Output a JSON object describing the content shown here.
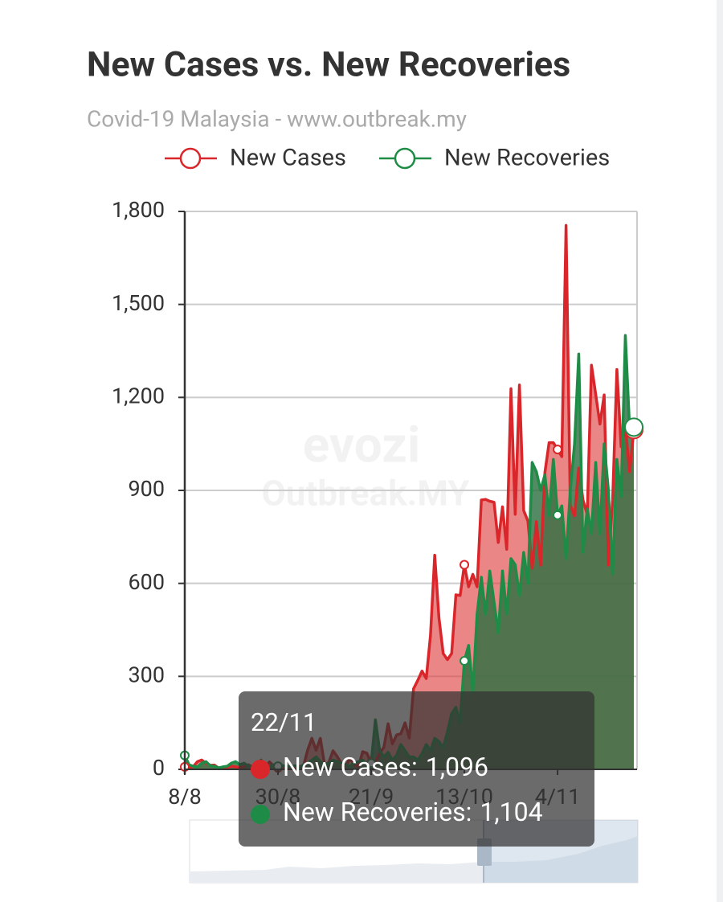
{
  "chart_data": {
    "type": "area",
    "title": "New Cases vs. New Recoveries",
    "subtitle": "Covid-19 Malaysia - www.outbreak.my",
    "watermark": [
      "evozi",
      "Outbreak.MY"
    ],
    "categories": [
      "8/8",
      null,
      null,
      null,
      null,
      null,
      null,
      null,
      null,
      null,
      null,
      null,
      null,
      null,
      null,
      null,
      null,
      null,
      null,
      null,
      null,
      null,
      "30/8",
      null,
      null,
      null,
      null,
      null,
      null,
      null,
      null,
      null,
      null,
      null,
      null,
      null,
      null,
      null,
      null,
      null,
      null,
      null,
      null,
      null,
      "21/9",
      null,
      null,
      null,
      null,
      null,
      null,
      null,
      null,
      null,
      null,
      null,
      null,
      null,
      null,
      null,
      null,
      null,
      null,
      null,
      null,
      null,
      "13/10",
      null,
      null,
      null,
      null,
      null,
      null,
      null,
      null,
      null,
      null,
      null,
      null,
      null,
      null,
      null,
      null,
      null,
      null,
      null,
      null,
      null,
      "4/11",
      null,
      null,
      null,
      null,
      null,
      null,
      null,
      null,
      null,
      null,
      null,
      null,
      null,
      null,
      null,
      null,
      null,
      null
    ],
    "series": [
      {
        "name": "New Cases",
        "color": "#d9262a",
        "area_color": "rgba(222,60,60,0.62)",
        "values": [
          8,
          6,
          9,
          25,
          30,
          20,
          13,
          14,
          4,
          3,
          5,
          10,
          8,
          6,
          9,
          15,
          7,
          10,
          12,
          6,
          24,
          11,
          5,
          9,
          6,
          5,
          6,
          10,
          9,
          62,
          100,
          62,
          100,
          15,
          22,
          60,
          41,
          18,
          11,
          36,
          15,
          9,
          57,
          52,
          21,
          23,
          52,
          71,
          147,
          82,
          111,
          115,
          150,
          101,
          260,
          287,
          317,
          293,
          432,
          691,
          489,
          374,
          354,
          374,
          563,
          561,
          660,
          589,
          629,
          589,
          869,
          871,
          865,
          862,
          732,
          847,
          710,
          1228,
          823,
          1240,
          835,
          801,
          649,
          799,
          659,
          957,
          1054,
          1054,
          1032,
          1009,
          1755,
          852,
          818,
          972,
          869,
          822,
          1304,
          1210,
          1114,
          1208,
          659,
          869,
          1290,
          1041,
          1109,
          960,
          1096
        ]
      },
      {
        "name": "New Recoveries",
        "color": "#1e8c46",
        "area_color": "rgba(46,112,66,0.82)",
        "values": [
          45,
          15,
          10,
          8,
          20,
          25,
          12,
          10,
          5,
          8,
          10,
          20,
          25,
          15,
          20,
          10,
          8,
          12,
          30,
          10,
          8,
          15,
          10,
          12,
          10,
          8,
          12,
          5,
          15,
          20,
          30,
          40,
          25,
          15,
          20,
          30,
          25,
          20,
          15,
          10,
          20,
          25,
          30,
          15,
          20,
          160,
          60,
          40,
          55,
          30,
          45,
          80,
          60,
          40,
          40,
          30,
          50,
          80,
          60,
          100,
          90,
          70,
          120,
          180,
          200,
          150,
          350,
          400,
          250,
          500,
          620,
          500,
          640,
          540,
          440,
          640,
          500,
          680,
          660,
          560,
          700,
          600,
          990,
          960,
          900,
          950,
          820,
          1000,
          820,
          850,
          680,
          900,
          1050,
          1340,
          700,
          840,
          760,
          990,
          760,
          1050,
          900,
          630,
          1000,
          880,
          1400,
          1100,
          1104
        ]
      }
    ],
    "ylim": [
      0,
      1800
    ],
    "yticks": [
      0,
      300,
      600,
      900,
      {
        "value": 1200,
        "label": "1,200"
      },
      {
        "value": 1500,
        "label": "1,500"
      },
      {
        "value": 1800,
        "label": "1,800"
      }
    ],
    "grid": true,
    "legend": "top-right",
    "tooltip": {
      "title": "22/11",
      "separator": ":",
      "value_labels": [
        "1,096",
        "1,104"
      ]
    }
  }
}
